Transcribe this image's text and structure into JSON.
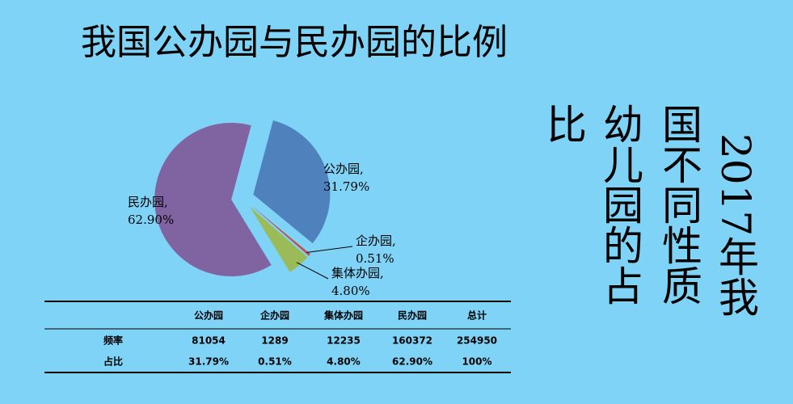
{
  "chart_data": {
    "type": "pie",
    "title": "我国公办园与民办园的比例",
    "categories": [
      "公办园,",
      "企办园,",
      "集体办园,",
      "民办园,"
    ],
    "values": [
      31.79,
      0.51,
      4.8,
      62.9
    ],
    "value_labels": [
      "31.79%",
      "0.51%",
      "4.80%",
      "62.90%"
    ],
    "colors": [
      "#4f81bd",
      "#c0504d",
      "#9bbb59",
      "#8064a2"
    ]
  },
  "side_title": [
    "2017年我",
    "国不同性质",
    "幼儿园的占",
    "比"
  ],
  "table": {
    "header": [
      "公办园",
      "企办园",
      "集体办园",
      "民办园",
      "总计"
    ],
    "rows": [
      [
        "频率",
        81054,
        1289,
        12235,
        160372,
        254950
      ],
      [
        "占比",
        "31.79%",
        "0.51%",
        "4.80%",
        "62.90%",
        "100%"
      ]
    ]
  }
}
